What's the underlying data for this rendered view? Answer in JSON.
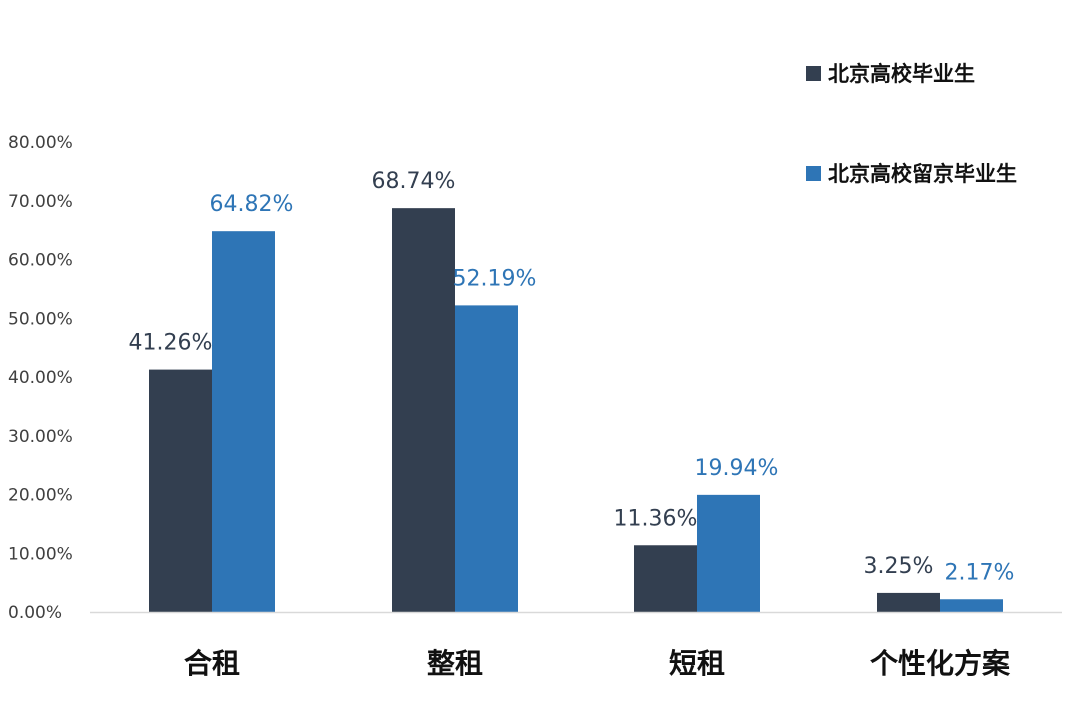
{
  "chart_data": {
    "type": "bar",
    "categories": [
      "合租",
      "整租",
      "短租",
      "个性化方案"
    ],
    "series": [
      {
        "name": "北京高校毕业生",
        "values": [
          41.26,
          68.74,
          11.36,
          3.25
        ],
        "labels": [
          "41.26%",
          "68.74%",
          "11.36%",
          "3.25%"
        ]
      },
      {
        "name": "北京高校留京毕业生",
        "values": [
          64.82,
          52.19,
          19.94,
          2.17
        ],
        "labels": [
          "64.82%",
          "52.19%",
          "19.94%",
          "2.17%"
        ]
      }
    ],
    "yticks": [
      "0.00%",
      "10.00%",
      "20.00%",
      "30.00%",
      "40.00%",
      "50.00%",
      "60.00%",
      "70.00%",
      "80.00%"
    ],
    "ylim": [
      0,
      80
    ],
    "grid": false,
    "legend_position": "top-right",
    "colors": {
      "series_0": "#333f50",
      "series_1": "#2e75b6",
      "label_0": "#333f50",
      "label_1": "#2e75b6",
      "axis": "#d9d9d9"
    }
  }
}
